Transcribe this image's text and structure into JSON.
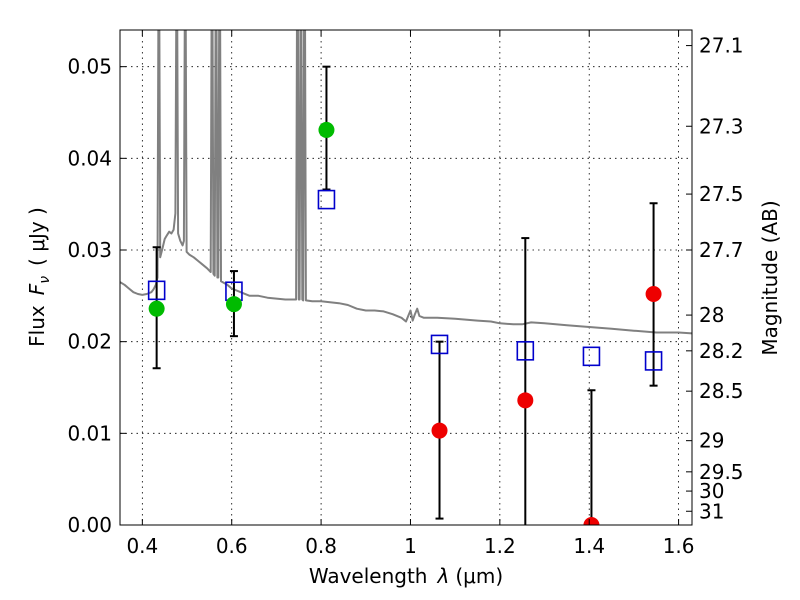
{
  "chart_data": {
    "type": "scatter",
    "xlabel_text": "Wavelength",
    "xlabel_symbol": "λ",
    "xlabel_unit": "(μm)",
    "ylabel_text": "Flux",
    "ylabel_symbol": "F",
    "ylabel_sub": "ν",
    "ylabel_unit": "( μJy )",
    "y2label": "Magnitude (AB)",
    "xlim": [
      0.35,
      1.63
    ],
    "ylim": [
      0.0,
      0.054
    ],
    "grid": true,
    "xticks": [
      0.4,
      0.6,
      0.8,
      1.0,
      1.2,
      1.4,
      1.6
    ],
    "xtick_labels": [
      "0.4",
      "0.6",
      "0.8",
      "1",
      "1.2",
      "1.4",
      "1.6"
    ],
    "yticks": [
      0.0,
      0.01,
      0.02,
      0.03,
      0.04,
      0.05
    ],
    "ytick_labels": [
      "0.00",
      "0.01",
      "0.02",
      "0.03",
      "0.04",
      "0.05"
    ],
    "mag_ticks": [
      {
        "flux": 0.0523,
        "label": "27.1"
      },
      {
        "flux": 0.0435,
        "label": "27.3"
      },
      {
        "flux": 0.0361,
        "label": "27.5"
      },
      {
        "flux": 0.03,
        "label": "27.7"
      },
      {
        "flux": 0.0229,
        "label": "28"
      },
      {
        "flux": 0.019,
        "label": "28.2"
      },
      {
        "flux": 0.0146,
        "label": "28.5"
      },
      {
        "flux": 0.0092,
        "label": "29"
      },
      {
        "flux": 0.0058,
        "label": "29.5"
      },
      {
        "flux": 0.0037,
        "label": "30"
      },
      {
        "flux": 0.0015,
        "label": "31"
      }
    ],
    "series": [
      {
        "name": "model-spectrum",
        "kind": "line",
        "color": "#808080",
        "points": [
          [
            0.35,
            0.0265
          ],
          [
            0.36,
            0.0262
          ],
          [
            0.37,
            0.0258
          ],
          [
            0.38,
            0.0254
          ],
          [
            0.39,
            0.0252
          ],
          [
            0.4,
            0.0251
          ],
          [
            0.41,
            0.0252
          ],
          [
            0.42,
            0.0254
          ],
          [
            0.425,
            0.0257
          ],
          [
            0.43,
            0.0262
          ],
          [
            0.434,
            0.027
          ],
          [
            0.436,
            0.056
          ],
          [
            0.438,
            0.056
          ],
          [
            0.44,
            0.0292
          ],
          [
            0.445,
            0.0302
          ],
          [
            0.45,
            0.0312
          ],
          [
            0.455,
            0.0316
          ],
          [
            0.46,
            0.032
          ],
          [
            0.465,
            0.0318
          ],
          [
            0.47,
            0.0322
          ],
          [
            0.474,
            0.034
          ],
          [
            0.476,
            0.056
          ],
          [
            0.478,
            0.056
          ],
          [
            0.48,
            0.0318
          ],
          [
            0.485,
            0.031
          ],
          [
            0.49,
            0.0305
          ],
          [
            0.493,
            0.031
          ],
          [
            0.495,
            0.056
          ],
          [
            0.497,
            0.056
          ],
          [
            0.499,
            0.0298
          ],
          [
            0.505,
            0.0295
          ],
          [
            0.515,
            0.0292
          ],
          [
            0.525,
            0.0288
          ],
          [
            0.535,
            0.0284
          ],
          [
            0.545,
            0.028
          ],
          [
            0.553,
            0.0276
          ],
          [
            0.555,
            0.056
          ],
          [
            0.557,
            0.056
          ],
          [
            0.559,
            0.0274
          ],
          [
            0.562,
            0.0272
          ],
          [
            0.564,
            0.056
          ],
          [
            0.566,
            0.056
          ],
          [
            0.568,
            0.027
          ],
          [
            0.57,
            0.027
          ],
          [
            0.572,
            0.056
          ],
          [
            0.574,
            0.056
          ],
          [
            0.576,
            0.0266
          ],
          [
            0.59,
            0.0262
          ],
          [
            0.6,
            0.0258
          ],
          [
            0.62,
            0.0254
          ],
          [
            0.64,
            0.025
          ],
          [
            0.66,
            0.025
          ],
          [
            0.68,
            0.0248
          ],
          [
            0.7,
            0.0247
          ],
          [
            0.72,
            0.0246
          ],
          [
            0.74,
            0.0246
          ],
          [
            0.744,
            0.0246
          ],
          [
            0.746,
            0.056
          ],
          [
            0.748,
            0.056
          ],
          [
            0.75,
            0.0246
          ],
          [
            0.752,
            0.0246
          ],
          [
            0.754,
            0.056
          ],
          [
            0.756,
            0.056
          ],
          [
            0.758,
            0.0246
          ],
          [
            0.76,
            0.0245
          ],
          [
            0.762,
            0.056
          ],
          [
            0.764,
            0.056
          ],
          [
            0.766,
            0.0245
          ],
          [
            0.78,
            0.0244
          ],
          [
            0.8,
            0.0244
          ],
          [
            0.82,
            0.0243
          ],
          [
            0.84,
            0.0242
          ],
          [
            0.86,
            0.024
          ],
          [
            0.88,
            0.0236
          ],
          [
            0.9,
            0.0234
          ],
          [
            0.92,
            0.0234
          ],
          [
            0.94,
            0.0233
          ],
          [
            0.96,
            0.023
          ],
          [
            0.98,
            0.0226
          ],
          [
            0.99,
            0.0222
          ],
          [
            0.995,
            0.0228
          ],
          [
            1.0,
            0.0234
          ],
          [
            1.005,
            0.0223
          ],
          [
            1.01,
            0.023
          ],
          [
            1.015,
            0.0236
          ],
          [
            1.02,
            0.0228
          ],
          [
            1.03,
            0.0226
          ],
          [
            1.06,
            0.0226
          ],
          [
            1.1,
            0.0225
          ],
          [
            1.15,
            0.0223
          ],
          [
            1.18,
            0.0222
          ],
          [
            1.2,
            0.022
          ],
          [
            1.23,
            0.0219
          ],
          [
            1.25,
            0.0219
          ],
          [
            1.27,
            0.0221
          ],
          [
            1.3,
            0.022
          ],
          [
            1.35,
            0.0218
          ],
          [
            1.4,
            0.0216
          ],
          [
            1.45,
            0.0214
          ],
          [
            1.5,
            0.0212
          ],
          [
            1.55,
            0.021
          ],
          [
            1.6,
            0.021
          ],
          [
            1.63,
            0.0209
          ]
        ]
      },
      {
        "name": "model-photometry",
        "kind": "open-square",
        "color": "#0000cc",
        "points": [
          [
            0.432,
            0.0256
          ],
          [
            0.605,
            0.0255
          ],
          [
            0.812,
            0.0355
          ],
          [
            1.065,
            0.0197
          ],
          [
            1.257,
            0.019
          ],
          [
            1.405,
            0.0184
          ],
          [
            1.544,
            0.0179
          ]
        ]
      },
      {
        "name": "detections",
        "kind": "filled-circle",
        "color": "#00bb00",
        "points": [
          [
            0.432,
            0.0236
          ],
          [
            0.605,
            0.0241
          ],
          [
            0.812,
            0.0431
          ]
        ],
        "errors": [
          [
            0.0171,
            0.0303
          ],
          [
            0.0206,
            0.0277
          ],
          [
            0.0366,
            0.05
          ]
        ]
      },
      {
        "name": "non-detections",
        "kind": "filled-circle",
        "color": "#ee0000",
        "points": [
          [
            1.065,
            0.0103
          ],
          [
            1.257,
            0.0136
          ],
          [
            1.405,
            0.0
          ],
          [
            1.544,
            0.0252
          ]
        ],
        "errors": [
          [
            0.0007,
            0.02
          ],
          [
            0.0,
            0.0313
          ],
          [
            0.0,
            0.0147
          ],
          [
            0.0152,
            0.0351
          ]
        ]
      }
    ]
  }
}
